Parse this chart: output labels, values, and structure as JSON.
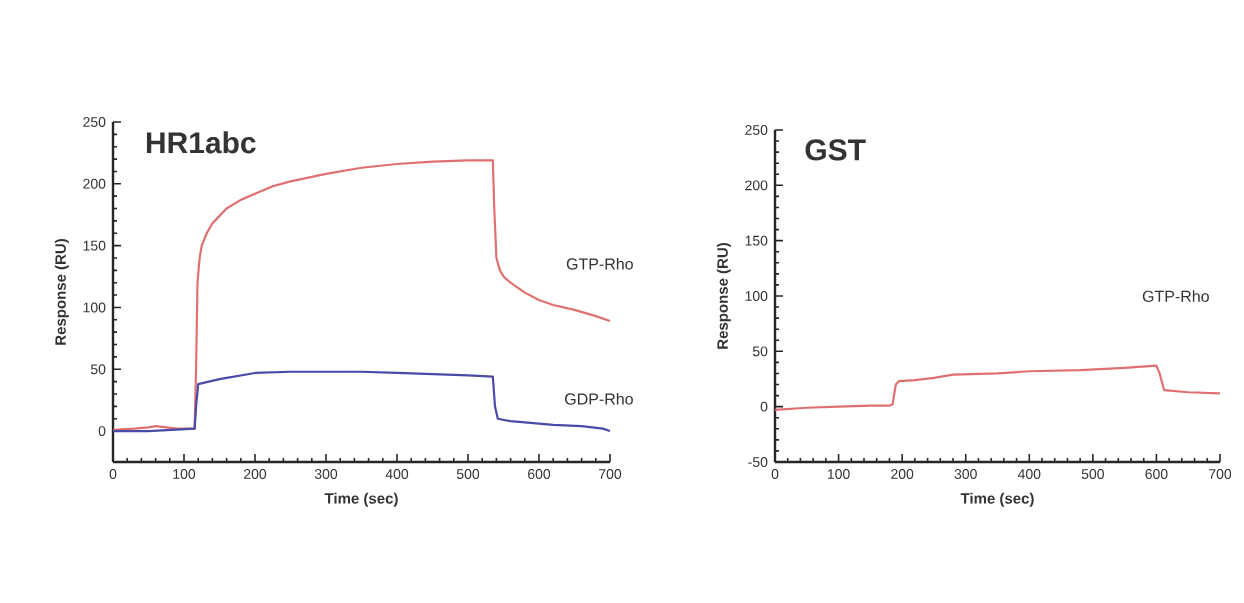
{
  "chart_data": [
    {
      "type": "line",
      "title": "HR1abc",
      "xlabel": "Time (sec)",
      "ylabel": "Response (RU)",
      "xlim": [
        0,
        700
      ],
      "ylim": [
        -25,
        250
      ],
      "xticks": [
        0,
        100,
        200,
        300,
        400,
        500,
        600,
        700
      ],
      "yticks": [
        0,
        50,
        100,
        150,
        200,
        250
      ],
      "series": [
        {
          "name": "GTP-Rho",
          "color": "#e07070",
          "x": [
            0,
            30,
            50,
            60,
            90,
            115,
            117,
            119,
            122,
            125,
            132,
            140,
            150,
            160,
            180,
            200,
            225,
            250,
            275,
            300,
            350,
            400,
            450,
            500,
            535,
            537,
            540,
            545,
            550,
            560,
            580,
            600,
            620,
            650,
            680,
            700
          ],
          "values": [
            1,
            2,
            3,
            4,
            2,
            2,
            50,
            120,
            140,
            150,
            160,
            168,
            174,
            180,
            187,
            192,
            198,
            202,
            205,
            208,
            213,
            216,
            218,
            219,
            219,
            180,
            140,
            130,
            125,
            120,
            112,
            106,
            102,
            98,
            93,
            89
          ]
        },
        {
          "name": "GDP-Rho",
          "color": "#4a4aa8",
          "x": [
            0,
            50,
            115,
            117,
            120,
            150,
            200,
            250,
            300,
            350,
            400,
            450,
            500,
            535,
            538,
            542,
            560,
            580,
            620,
            660,
            690,
            700
          ],
          "values": [
            0,
            0,
            2,
            20,
            38,
            42,
            47,
            48,
            48,
            48,
            47,
            46,
            45,
            44,
            20,
            10,
            8,
            7,
            5,
            4,
            2,
            0
          ]
        }
      ]
    },
    {
      "type": "line",
      "title": "GST",
      "xlabel": "Time (sec)",
      "ylabel": "Response (RU)",
      "xlim": [
        0,
        700
      ],
      "ylim": [
        -50,
        250
      ],
      "xticks": [
        0,
        100,
        200,
        300,
        400,
        500,
        600,
        700
      ],
      "yticks": [
        -50,
        0,
        50,
        100,
        150,
        200,
        250
      ],
      "series": [
        {
          "name": "GTP-Rho",
          "color": "#e07070",
          "x": [
            0,
            50,
            100,
            150,
            180,
            185,
            190,
            195,
            220,
            250,
            280,
            350,
            400,
            480,
            550,
            600,
            605,
            612,
            650,
            700
          ],
          "values": [
            -3,
            -1,
            0,
            1,
            1,
            2,
            20,
            23,
            24,
            26,
            29,
            30,
            32,
            33,
            35,
            37,
            30,
            15,
            13,
            12
          ]
        }
      ]
    }
  ]
}
